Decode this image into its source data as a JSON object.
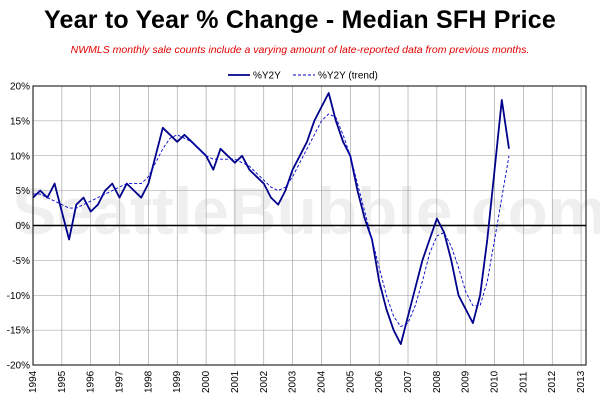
{
  "title": "Year to Year % Change - Median SFH Price",
  "subtitle": "NWMLS monthly sale counts include a varying amount of late-reported  data from previous months.",
  "watermark": "SeattleBubble.com",
  "colors": {
    "series_main": "#00008b",
    "series_trend": "#0000cd",
    "zero_line": "#000000",
    "grid": "#9a9a9a"
  },
  "chart_data": {
    "type": "line",
    "ylim": [
      -20,
      20
    ],
    "yticks": [
      20,
      15,
      10,
      5,
      0,
      -5,
      -10,
      -15,
      -20
    ],
    "ytick_labels": [
      "20%",
      "15%",
      "10%",
      "5%",
      "0%",
      "-5%",
      "-10%",
      "-15%",
      "-20%"
    ],
    "x_start": 1994,
    "x_end": 2013.17,
    "xtick_labels": [
      "1994",
      "1995",
      "1996",
      "1997",
      "1998",
      "1999",
      "2000",
      "2001",
      "2002",
      "2003",
      "2004",
      "2005",
      "2006",
      "2007",
      "2008",
      "2009",
      "2010",
      "2011",
      "2012",
      "2013"
    ],
    "legend_position": "top-center",
    "grid": true,
    "series": [
      {
        "name": "%Y2Y",
        "style": "solid",
        "x_step": 0.25,
        "values": [
          4,
          5,
          4,
          6,
          2,
          -2,
          3,
          4,
          2,
          3,
          5,
          6,
          4,
          6,
          5,
          4,
          6,
          10,
          14,
          13,
          12,
          13,
          12,
          11,
          10,
          8,
          11,
          10,
          9,
          10,
          8,
          7,
          6,
          4,
          3,
          5,
          8,
          10,
          12,
          15,
          17,
          19,
          15,
          12,
          10,
          5,
          1,
          -2,
          -8,
          -12,
          -15,
          -17,
          -13,
          -9,
          -5,
          -2,
          1,
          -1,
          -5,
          -10,
          -12,
          -14,
          -10,
          -2,
          8,
          18,
          11
        ]
      },
      {
        "name": "%Y2Y (trend)",
        "style": "dashed",
        "x_step": 0.25,
        "values": [
          4.5,
          4.5,
          4,
          3.5,
          3,
          2.5,
          2.5,
          3,
          3.5,
          4,
          4.5,
          5,
          5.5,
          6,
          6,
          6,
          7,
          9,
          11,
          12.5,
          13,
          12.5,
          12,
          11,
          10,
          9.5,
          9.5,
          9.5,
          9.5,
          9,
          8.5,
          7.5,
          6.5,
          5.5,
          5,
          5.5,
          7,
          9,
          11,
          13,
          15,
          16,
          15.5,
          13,
          10,
          6,
          2,
          -2,
          -6,
          -10,
          -13,
          -14.5,
          -14,
          -11.5,
          -8,
          -4,
          -1.5,
          -1,
          -3,
          -6,
          -9.5,
          -11.5,
          -11.5,
          -8,
          -2,
          4,
          10
        ]
      }
    ]
  }
}
